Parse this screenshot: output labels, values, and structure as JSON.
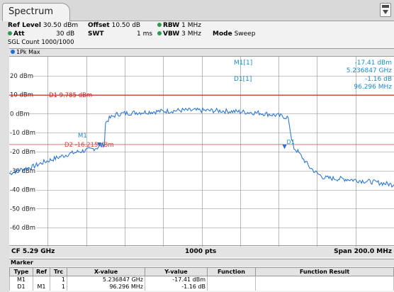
{
  "tab": {
    "label": "Spectrum"
  },
  "settings": {
    "ref_level_label": "Ref Level",
    "ref_level_value": "30.50 dBm",
    "offset_label": "Offset",
    "offset_value": "10.50 dB",
    "rbw_label": "RBW",
    "rbw_value": "1 MHz",
    "att_label": "Att",
    "att_value": "30 dB",
    "swt_label": "SWT",
    "swt_value": "1 ms",
    "vbw_label": "VBW",
    "vbw_value": "3 MHz",
    "mode_label": "Mode",
    "mode_value": "Sweep",
    "sgl_count": "SGL Count 1000/1000"
  },
  "trace": {
    "label": "1Pk Max",
    "color": "#1e6fd9"
  },
  "marker_info": {
    "m1_name": "M1[1]",
    "m1_level": "-17.41 dBm",
    "m1_freq": "5.236847 GHz",
    "d1_name": "D1[1]",
    "d1_level": "-1.16 dB",
    "d1_freq": "96.296 MHz"
  },
  "display_lines": {
    "d1_label": "D1  9.785 dBm",
    "d2_label": "D2  -16.215 dBm",
    "d1_dbm": 9.785,
    "d2_dbm": -16.215,
    "d1_color": "#c8221c",
    "d2_color": "#e0453c"
  },
  "chart_data": {
    "type": "line",
    "y_tick_labels": [
      "20 dBm",
      "10 dBm",
      "0 dBm",
      "-10 dBm",
      "-20 dBm",
      "-30 dBm",
      "-40 dBm",
      "-50 dBm",
      "-60 dBm"
    ],
    "y_ticks": [
      20,
      10,
      0,
      -10,
      -20,
      -30,
      -40,
      -50,
      -60
    ],
    "ylim": [
      -70,
      30
    ],
    "xlim_ghz": [
      5.19,
      5.39
    ],
    "x_grid_divisions": 10,
    "grid": true,
    "series": [
      {
        "color": "#1e6fd9",
        "x_ghz": [
          5.19,
          5.196,
          5.202,
          5.208,
          5.214,
          5.22,
          5.226,
          5.232,
          5.2368,
          5.2395,
          5.24,
          5.242,
          5.246,
          5.25,
          5.26,
          5.27,
          5.28,
          5.29,
          5.3,
          5.31,
          5.32,
          5.33,
          5.335,
          5.3368,
          5.338,
          5.34,
          5.343,
          5.346,
          5.35,
          5.354,
          5.36,
          5.366,
          5.372,
          5.378,
          5.384,
          5.39
        ],
        "y_dbm": [
          -31.5,
          -29.5,
          -28,
          -25.5,
          -23.5,
          -21.5,
          -20,
          -19,
          -17.4,
          -16,
          -5,
          -2.5,
          -0.3,
          0.2,
          0.8,
          1.3,
          1.8,
          1.7,
          1.5,
          1.0,
          0.4,
          -1.0,
          -2,
          -14,
          -18,
          -20,
          -24,
          -28,
          -31.5,
          -33.8,
          -34.2,
          -34.5,
          -35.2,
          -35.8,
          -36.6,
          -37.5
        ]
      }
    ]
  },
  "markers_on_plot": {
    "m1_label": "M1",
    "d1_label": "D1",
    "m1_x_ghz": 5.2368,
    "m1_y_dbm": -17.41,
    "d1_x_ghz": 5.3331,
    "d1_y_dbm": -18.57
  },
  "footer": {
    "cf": "CF 5.29 GHz",
    "pts": "1000 pts",
    "span": "Span 200.0 MHz"
  },
  "marker_table": {
    "title": "Marker",
    "headers": {
      "type": "Type",
      "ref": "Ref",
      "trc": "Trc",
      "xval": "X-value",
      "yval": "Y-value",
      "func": "Function",
      "result": "Function Result"
    },
    "rows": [
      {
        "type": "M1",
        "ref": "",
        "trc": "1",
        "xval": "5.236847 GHz",
        "yval": "-17.41 dBm",
        "func": "",
        "result": ""
      },
      {
        "type": "D1",
        "ref": "M1",
        "trc": "1",
        "xval": "96.296 MHz",
        "yval": "-1.16 dB",
        "func": "",
        "result": ""
      }
    ]
  }
}
